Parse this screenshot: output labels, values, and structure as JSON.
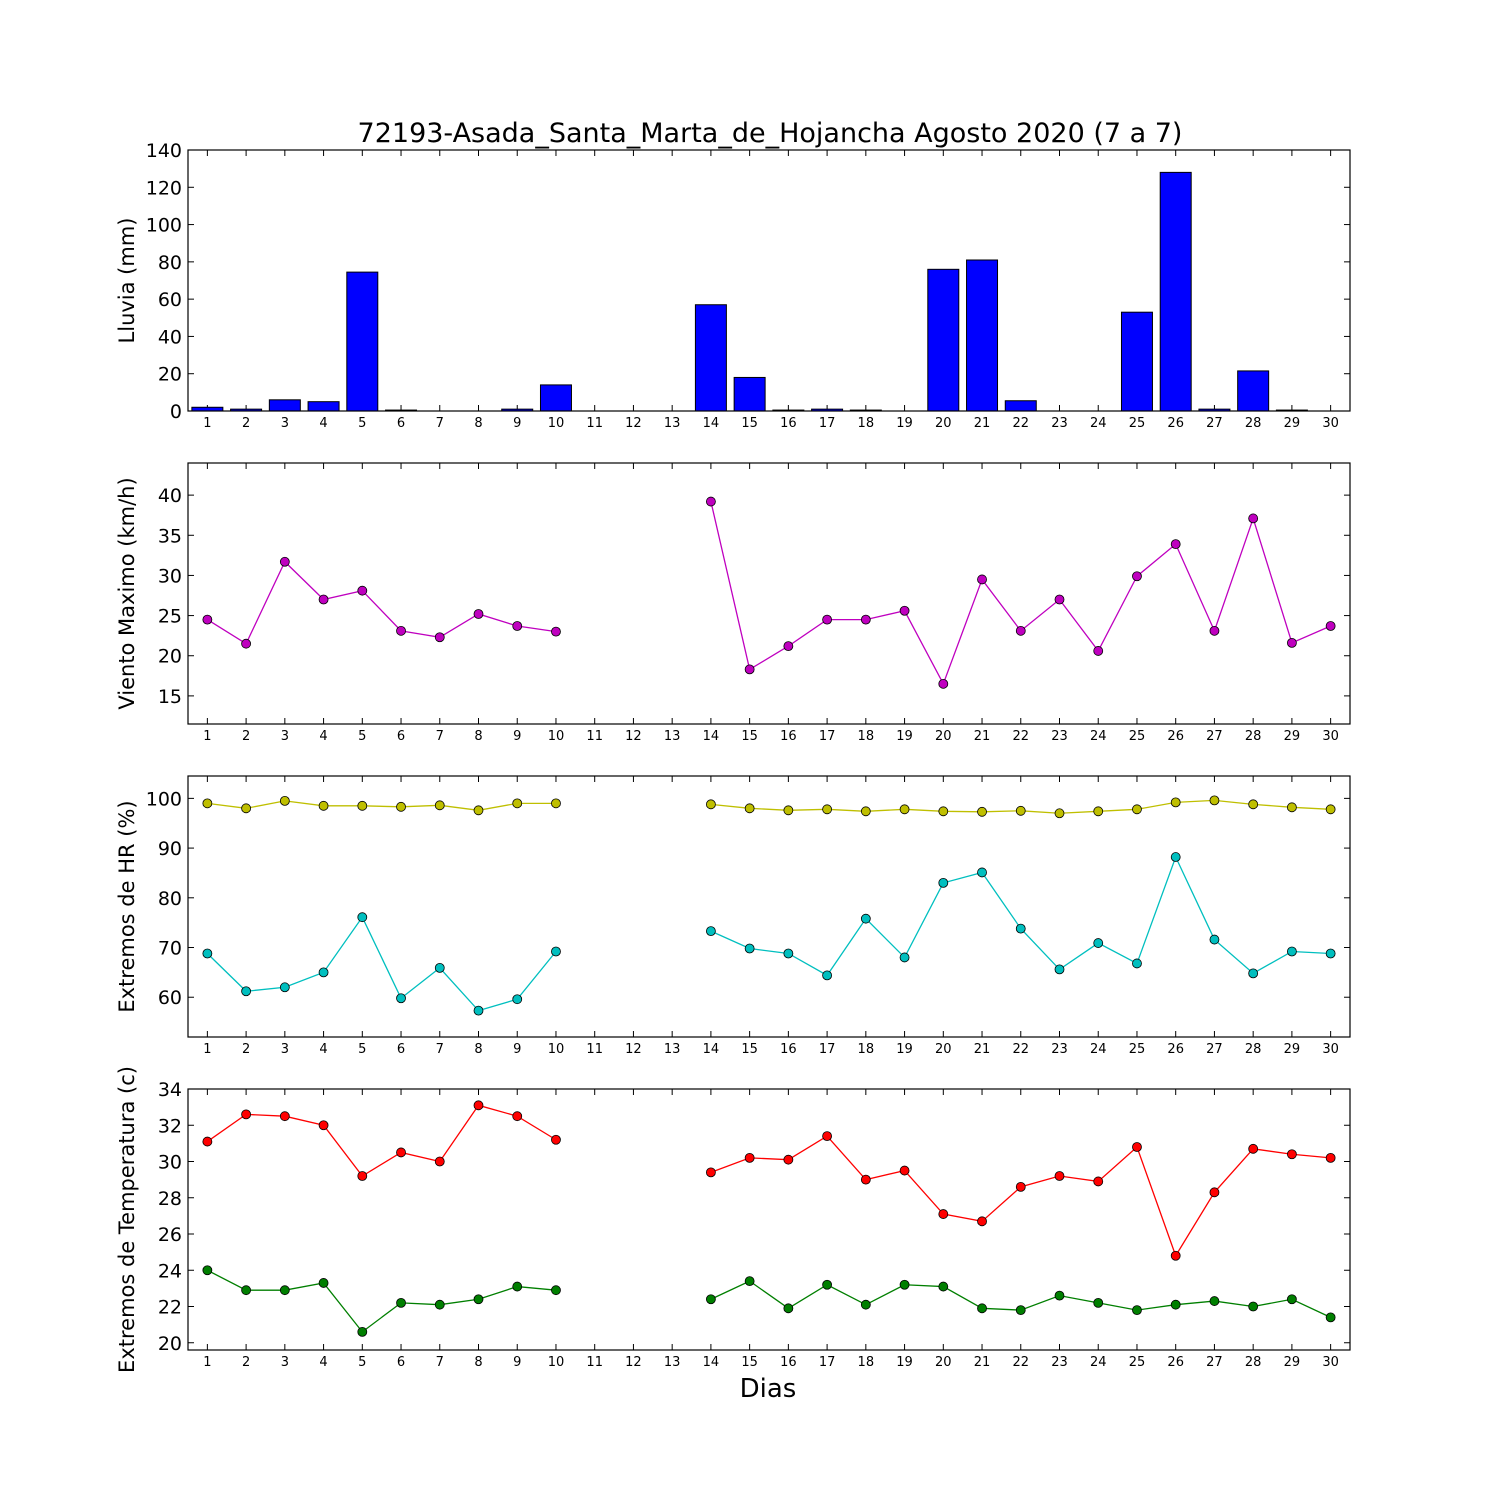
{
  "chart_data": {
    "title": "72193-Asada_Santa_Marta_de_Hojancha Agosto 2020  (7 a 7)",
    "xlabel": "Dias",
    "days": [
      1,
      2,
      3,
      4,
      5,
      6,
      7,
      8,
      9,
      10,
      11,
      12,
      13,
      14,
      15,
      16,
      17,
      18,
      19,
      20,
      21,
      22,
      23,
      24,
      25,
      26,
      27,
      28,
      29,
      30
    ],
    "panels": [
      {
        "type": "bar",
        "ylabel": "Lluvia (mm)",
        "ylim": [
          0,
          140
        ],
        "yticks": [
          0,
          20,
          40,
          60,
          80,
          100,
          120,
          140
        ],
        "series": [
          {
            "color": "#0000ff",
            "values": [
              2,
              1,
              6,
              5,
              74.5,
              0.5,
              0,
              0,
              1,
              14,
              0,
              0,
              0,
              57,
              18,
              0.5,
              1,
              0.5,
              0,
              76,
              81,
              5.5,
              0,
              0,
              53,
              128,
              1,
              21.5,
              0.5,
              0
            ]
          }
        ]
      },
      {
        "type": "line",
        "ylabel": "Viento Maximo (km/h)",
        "ylim": [
          11.5,
          44
        ],
        "yticks": [
          15,
          20,
          25,
          30,
          35,
          40
        ],
        "series": [
          {
            "color": "#bf00bf",
            "values": [
              24.5,
              21.5,
              31.7,
              27.0,
              28.1,
              23.1,
              22.3,
              25.2,
              23.7,
              23.0,
              null,
              null,
              null,
              39.2,
              18.3,
              21.2,
              24.5,
              24.5,
              25.6,
              16.5,
              29.5,
              23.1,
              27.0,
              20.6,
              29.9,
              33.9,
              23.1,
              37.1,
              21.6,
              23.7
            ]
          }
        ]
      },
      {
        "type": "line",
        "ylabel": "Extremos de HR (%)",
        "ylim": [
          52,
          104.5
        ],
        "yticks": [
          60,
          70,
          80,
          90,
          100
        ],
        "series": [
          {
            "color": "#bfbf00",
            "values": [
              99,
              98,
              99.5,
              98.5,
              98.5,
              98.3,
              98.6,
              97.6,
              99,
              99,
              null,
              null,
              null,
              98.8,
              98,
              97.6,
              97.8,
              97.4,
              97.8,
              97.4,
              97.3,
              97.5,
              97,
              97.4,
              97.8,
              99.2,
              99.6,
              98.8,
              98.2,
              97.8
            ]
          },
          {
            "color": "#00bfbf",
            "values": [
              68.8,
              61.2,
              62,
              65,
              76.1,
              59.8,
              65.9,
              57.3,
              59.6,
              69.2,
              null,
              null,
              null,
              73.3,
              69.8,
              68.8,
              64.4,
              75.8,
              68,
              83,
              85.1,
              73.8,
              65.6,
              70.9,
              66.8,
              88.2,
              71.6,
              64.8,
              69.2,
              68.8
            ]
          }
        ]
      },
      {
        "type": "line",
        "ylabel": "Extremos de Temperatura (c)",
        "ylim": [
          19.6,
          34
        ],
        "yticks": [
          20,
          22,
          24,
          26,
          28,
          30,
          32,
          34
        ],
        "series": [
          {
            "color": "#ff0000",
            "values": [
              31.1,
              32.6,
              32.5,
              32,
              29.2,
              30.5,
              30,
              33.1,
              32.5,
              31.2,
              null,
              null,
              null,
              29.4,
              30.2,
              30.1,
              31.4,
              29,
              29.5,
              27.1,
              26.7,
              28.6,
              29.2,
              28.9,
              30.8,
              24.8,
              28.3,
              30.7,
              30.4,
              30.2
            ]
          },
          {
            "color": "#007f00",
            "values": [
              24,
              22.9,
              22.9,
              23.3,
              20.6,
              22.2,
              22.1,
              22.4,
              23.1,
              22.9,
              null,
              null,
              null,
              22.4,
              23.4,
              21.9,
              23.2,
              22.1,
              23.2,
              23.1,
              21.9,
              21.8,
              22.6,
              22.2,
              21.8,
              22.1,
              22.3,
              22,
              22.4,
              21.4
            ]
          }
        ]
      }
    ]
  }
}
